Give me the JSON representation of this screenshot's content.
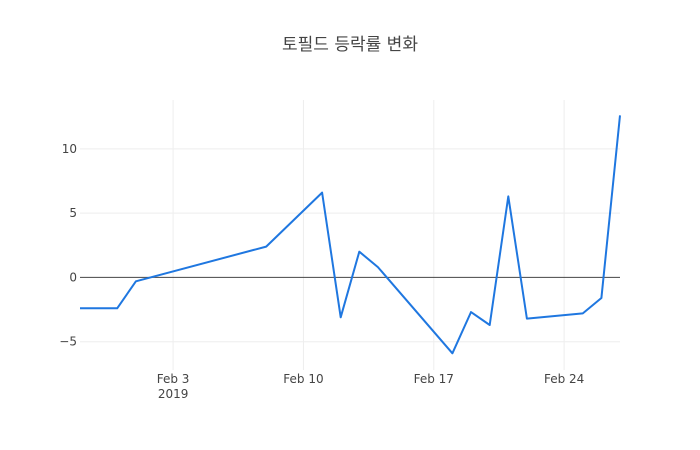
{
  "chart_data": {
    "type": "line",
    "title": "토필드 등락률 변화",
    "xlabel": "",
    "ylabel": "",
    "x_range": [
      "2019-01-29",
      "2019-02-27"
    ],
    "ylim": [
      -7.2,
      13.8
    ],
    "grid": true,
    "x_ticks": [
      {
        "date": "2019-02-03",
        "label": "Feb 3",
        "sublabel": "2019"
      },
      {
        "date": "2019-02-10",
        "label": "Feb 10",
        "sublabel": ""
      },
      {
        "date": "2019-02-17",
        "label": "Feb 17",
        "sublabel": ""
      },
      {
        "date": "2019-02-24",
        "label": "Feb 24",
        "sublabel": ""
      }
    ],
    "y_ticks": [
      10,
      5,
      0,
      -5
    ],
    "y_tick_labels": [
      "10",
      "5",
      "0",
      "−5"
    ],
    "series": [
      {
        "color": "#1f77e0",
        "x": [
          "2019-01-29",
          "2019-01-31",
          "2019-02-01",
          "2019-02-08",
          "2019-02-11",
          "2019-02-12",
          "2019-02-13",
          "2019-02-14",
          "2019-02-18",
          "2019-02-19",
          "2019-02-20",
          "2019-02-21",
          "2019-02-22",
          "2019-02-25",
          "2019-02-26",
          "2019-02-27"
        ],
        "y": [
          -2.4,
          -2.4,
          -0.3,
          2.4,
          6.6,
          -3.1,
          2.0,
          0.8,
          -5.9,
          -2.7,
          -3.7,
          6.3,
          -3.2,
          -2.8,
          -1.6,
          12.6
        ]
      }
    ]
  }
}
